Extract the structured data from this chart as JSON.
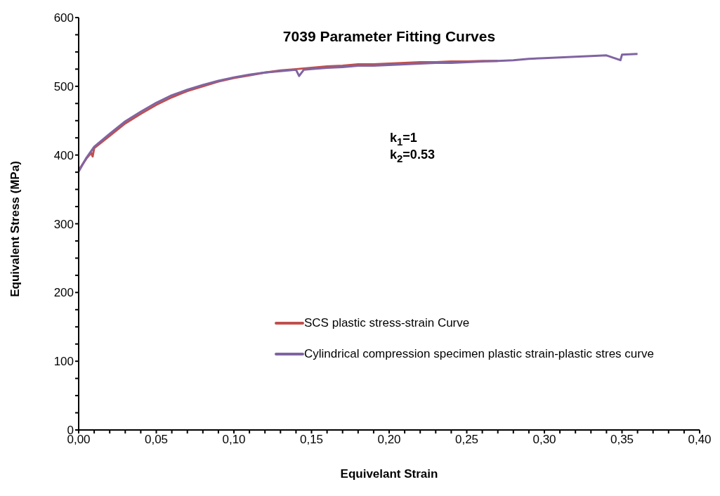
{
  "chart_data": {
    "type": "line",
    "title": "7039 Parameter Fitting Curves",
    "xlabel": "Equivelant Strain",
    "ylabel": "Equivalent Stress (MPa)",
    "annotations": [
      "k$_{1}$=1",
      "k$_{2}$=0.53"
    ],
    "xlim": [
      0,
      0.4
    ],
    "xticks": [
      {
        "value": 0,
        "label": "0,00"
      },
      {
        "value": 0.01,
        "label": null
      },
      {
        "value": 0.02,
        "label": null
      },
      {
        "value": 0.03,
        "label": null
      },
      {
        "value": 0.04,
        "label": null
      },
      {
        "value": 0.05,
        "label": "0,05"
      },
      {
        "value": 0.06,
        "label": null
      },
      {
        "value": 0.07,
        "label": null
      },
      {
        "value": 0.08,
        "label": null
      },
      {
        "value": 0.09,
        "label": null
      },
      {
        "value": 0.1,
        "label": "0,10"
      },
      {
        "value": 0.11,
        "label": null
      },
      {
        "value": 0.12,
        "label": null
      },
      {
        "value": 0.13,
        "label": null
      },
      {
        "value": 0.14,
        "label": null
      },
      {
        "value": 0.15,
        "label": "0,15"
      },
      {
        "value": 0.16,
        "label": null
      },
      {
        "value": 0.17,
        "label": null
      },
      {
        "value": 0.18,
        "label": null
      },
      {
        "value": 0.19,
        "label": null
      },
      {
        "value": 0.2,
        "label": "0,20"
      },
      {
        "value": 0.21,
        "label": null
      },
      {
        "value": 0.22,
        "label": null
      },
      {
        "value": 0.23,
        "label": null
      },
      {
        "value": 0.24,
        "label": null
      },
      {
        "value": 0.25,
        "label": "0,25"
      },
      {
        "value": 0.26,
        "label": null
      },
      {
        "value": 0.27,
        "label": null
      },
      {
        "value": 0.28,
        "label": null
      },
      {
        "value": 0.29,
        "label": null
      },
      {
        "value": 0.3,
        "label": "0,30"
      },
      {
        "value": 0.31,
        "label": null
      },
      {
        "value": 0.32,
        "label": null
      },
      {
        "value": 0.33,
        "label": null
      },
      {
        "value": 0.34,
        "label": null
      },
      {
        "value": 0.35,
        "label": "0,35"
      },
      {
        "value": 0.36,
        "label": null
      },
      {
        "value": 0.37,
        "label": null
      },
      {
        "value": 0.38,
        "label": null
      },
      {
        "value": 0.39,
        "label": null
      },
      {
        "value": 0.4,
        "label": "0,40"
      }
    ],
    "ylim": [
      0,
      600
    ],
    "yticks": [
      0,
      {
        "value": 25,
        "label": null
      },
      {
        "value": 50,
        "label": null
      },
      {
        "value": 75,
        "label": null
      },
      100,
      {
        "value": 125,
        "label": null
      },
      {
        "value": 150,
        "label": null
      },
      {
        "value": 175,
        "label": null
      },
      200,
      {
        "value": 225,
        "label": null
      },
      {
        "value": 250,
        "label": null
      },
      {
        "value": 275,
        "label": null
      },
      300,
      {
        "value": 325,
        "label": null
      },
      {
        "value": 350,
        "label": null
      },
      {
        "value": 375,
        "label": null
      },
      400,
      {
        "value": 425,
        "label": null
      },
      {
        "value": 450,
        "label": null
      },
      {
        "value": 475,
        "label": null
      },
      500,
      {
        "value": 525,
        "label": null
      },
      {
        "value": 550,
        "label": null
      },
      {
        "value": 575,
        "label": null
      },
      600
    ],
    "grid": false,
    "legend": "bottom",
    "marker": "none",
    "line_style": "solid",
    "series": [
      {
        "name": "SCS plastic stress-strain Curve",
        "color": "#c0504d",
        "x": [
          0,
          0.005,
          0.008,
          0.009,
          0.01,
          0.02,
          0.03,
          0.04,
          0.05,
          0.06,
          0.07,
          0.08,
          0.09,
          0.1,
          0.11,
          0.12,
          0.13,
          0.14,
          0.15,
          0.16,
          0.17,
          0.18,
          0.19,
          0.2,
          0.21,
          0.22,
          0.23,
          0.24,
          0.25,
          0.26,
          0.27
        ],
        "values": [
          378,
          395,
          403,
          398,
          410,
          428,
          446,
          460,
          473,
          484,
          493,
          500,
          507,
          512,
          516,
          520,
          523,
          525,
          527,
          529,
          530,
          532,
          532,
          533,
          534,
          535,
          535,
          536,
          536,
          537,
          537
        ]
      },
      {
        "name": "Cylindrical compression specimen plastic strain-plastic stres curve",
        "color": "#8064a2",
        "x": [
          0,
          0.005,
          0.01,
          0.02,
          0.03,
          0.04,
          0.05,
          0.06,
          0.07,
          0.08,
          0.09,
          0.1,
          0.11,
          0.12,
          0.13,
          0.14,
          0.142,
          0.145,
          0.15,
          0.16,
          0.17,
          0.18,
          0.19,
          0.2,
          0.21,
          0.22,
          0.23,
          0.24,
          0.25,
          0.26,
          0.27,
          0.28,
          0.29,
          0.3,
          0.31,
          0.32,
          0.33,
          0.34,
          0.349,
          0.35,
          0.36
        ],
        "values": [
          376,
          396,
          412,
          431,
          449,
          463,
          476,
          487,
          495,
          502,
          508,
          513,
          517,
          520,
          522,
          524,
          515,
          524,
          525,
          527,
          528,
          530,
          530,
          531,
          532,
          533,
          534,
          534,
          535,
          536,
          537,
          538,
          540,
          541,
          542,
          543,
          544,
          545,
          538,
          546,
          547
        ]
      }
    ]
  }
}
